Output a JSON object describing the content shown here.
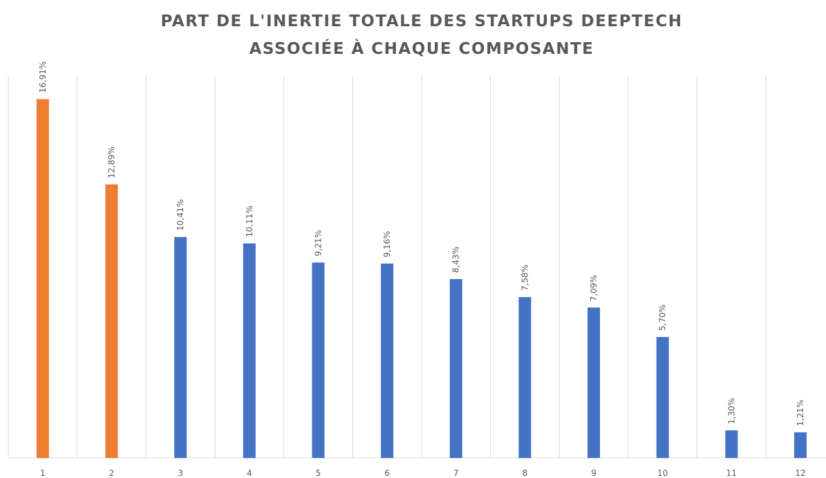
{
  "chart_data": {
    "type": "bar",
    "title": [
      "PART DE L'INERTIE TOTALE DES STARTUPS DEEPTECH",
      "ASSOCIÉE À CHAQUE COMPOSANTE"
    ],
    "categories": [
      "1",
      "2",
      "3",
      "4",
      "5",
      "6",
      "7",
      "8",
      "9",
      "10",
      "11",
      "12"
    ],
    "values": [
      16.91,
      12.89,
      10.41,
      10.11,
      9.21,
      9.16,
      8.43,
      7.58,
      7.09,
      5.7,
      1.3,
      1.21
    ],
    "value_labels": [
      "16,91%",
      "12,89%",
      "10,41%",
      "10,11%",
      "9,21%",
      "9,16%",
      "8,43%",
      "7,58%",
      "7,09%",
      "5,70%",
      "1,30%",
      "1,21%"
    ],
    "colors": [
      "#ED7D31",
      "#ED7D31",
      "#4472C4",
      "#4472C4",
      "#4472C4",
      "#4472C4",
      "#4472C4",
      "#4472C4",
      "#4472C4",
      "#4472C4",
      "#4472C4",
      "#4472C4"
    ],
    "ylim": [
      0,
      18
    ]
  }
}
